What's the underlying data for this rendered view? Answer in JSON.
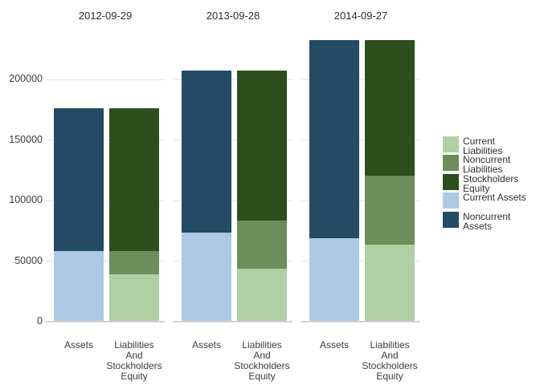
{
  "style": {
    "background": "#ffffff",
    "grid_color": "#e7e7e7",
    "axis_line_color": "#d2d2d2",
    "tick_text_color": "#3c3c3c",
    "title_text_color": "#2d2d2d"
  },
  "chart_data": {
    "type": "bar",
    "stacked": true,
    "title": "",
    "xlabel": "",
    "ylabel": "",
    "grid": true,
    "facets": [
      "2012-09-29",
      "2013-09-28",
      "2014-09-27"
    ],
    "categories": [
      "Assets",
      "Liabilities And Stockholders Equity"
    ],
    "x_tick_display": [
      "Assets",
      "Liabilities\nAnd\nStockholders\nEquity"
    ],
    "yticks": [
      0,
      50000,
      100000,
      150000,
      200000
    ],
    "ytick_labels": [
      "0",
      "50000",
      "100000",
      "150000",
      "200000"
    ],
    "ylim": [
      0,
      235000
    ],
    "series": [
      {
        "name": "Current Assets",
        "category": "Assets",
        "color": "#aec8e4",
        "values": [
          57653,
          73286,
          68531
        ]
      },
      {
        "name": "Noncurrent Assets",
        "category": "Assets",
        "color": "#234b63",
        "values": [
          118411,
          133714,
          163308
        ]
      },
      {
        "name": "Current Liabilities",
        "category": "Liabilities And Stockholders Equity",
        "color": "#b0cfa5",
        "values": [
          38542,
          43658,
          63448
        ]
      },
      {
        "name": "Noncurrent Liabilities",
        "category": "Liabilities And Stockholders Equity",
        "color": "#6d8d5b",
        "values": [
          19312,
          39793,
          56844
        ]
      },
      {
        "name": "Stockholders Equity",
        "category": "Liabilities And Stockholders Equity",
        "color": "#2d4e1d",
        "values": [
          118210,
          123549,
          111547
        ]
      }
    ],
    "legend": {
      "position": "right",
      "items": [
        {
          "label": "Current Liabilities",
          "color": "#b0cfa5"
        },
        {
          "label": "Noncurrent Liabilities",
          "color": "#6d8d5b"
        },
        {
          "label": "Stockholders Equity",
          "color": "#2d4e1d"
        },
        {
          "label": "Current Assets",
          "color": "#aec8e4"
        },
        {
          "label": "Noncurrent Assets",
          "color": "#234b63"
        }
      ]
    }
  }
}
